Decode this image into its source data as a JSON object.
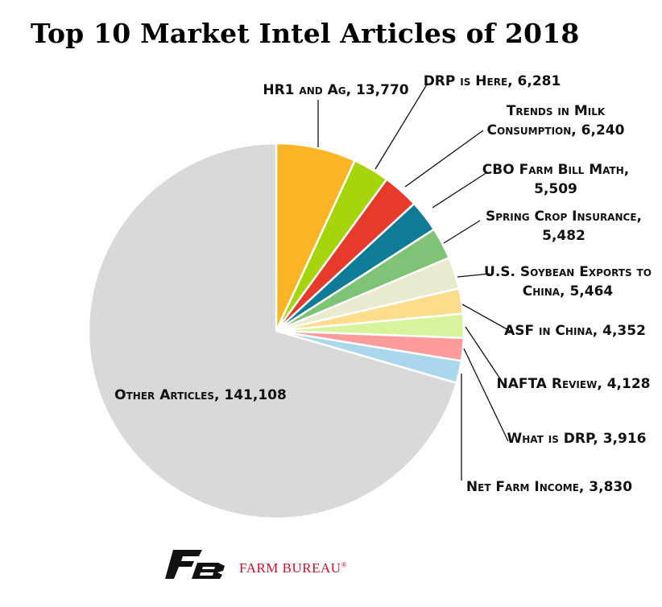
{
  "title": "Top 10 Market Intel Articles of 2018",
  "brand": {
    "name": "FARM BUREAU",
    "mark": "®",
    "color": "#c8102e"
  },
  "chart_data": {
    "type": "pie",
    "title": "Top 10 Market Intel Articles of 2018",
    "start_angle_deg": 0,
    "direction": "clockwise",
    "slices": [
      {
        "label": "HR1 and Ag",
        "value": 13770,
        "display": "13,770",
        "color": "#fbb424"
      },
      {
        "label": "DRP is Here",
        "value": 6281,
        "display": "6,281",
        "color": "#a6d50b"
      },
      {
        "label": "Trends in Milk Consumption",
        "value": 6240,
        "display": "6,240",
        "color": "#e83a2c"
      },
      {
        "label": "CBO Farm Bill Math",
        "value": 5509,
        "display": "5,509",
        "color": "#0e7b97"
      },
      {
        "label": "Spring Crop Insurance",
        "value": 5482,
        "display": "5,482",
        "color": "#7fc476"
      },
      {
        "label": "U.S. Soybean Exports to China",
        "value": 5464,
        "display": "5,464",
        "color": "#eaeacf"
      },
      {
        "label": "ASF in China",
        "value": 4352,
        "display": "4,352",
        "color": "#fddd8b"
      },
      {
        "label": "NAFTA Review",
        "value": 4128,
        "display": "4,128",
        "color": "#d7f49c"
      },
      {
        "label": "What is DRP",
        "value": 3916,
        "display": "3,916",
        "color": "#fc9b9a"
      },
      {
        "label": "Net Farm Income",
        "value": 3830,
        "display": "3,830",
        "color": "#a9d7ec"
      },
      {
        "label": "Other Articles",
        "value": 141108,
        "display": "141,108",
        "color": "#d9d9d9"
      }
    ]
  }
}
